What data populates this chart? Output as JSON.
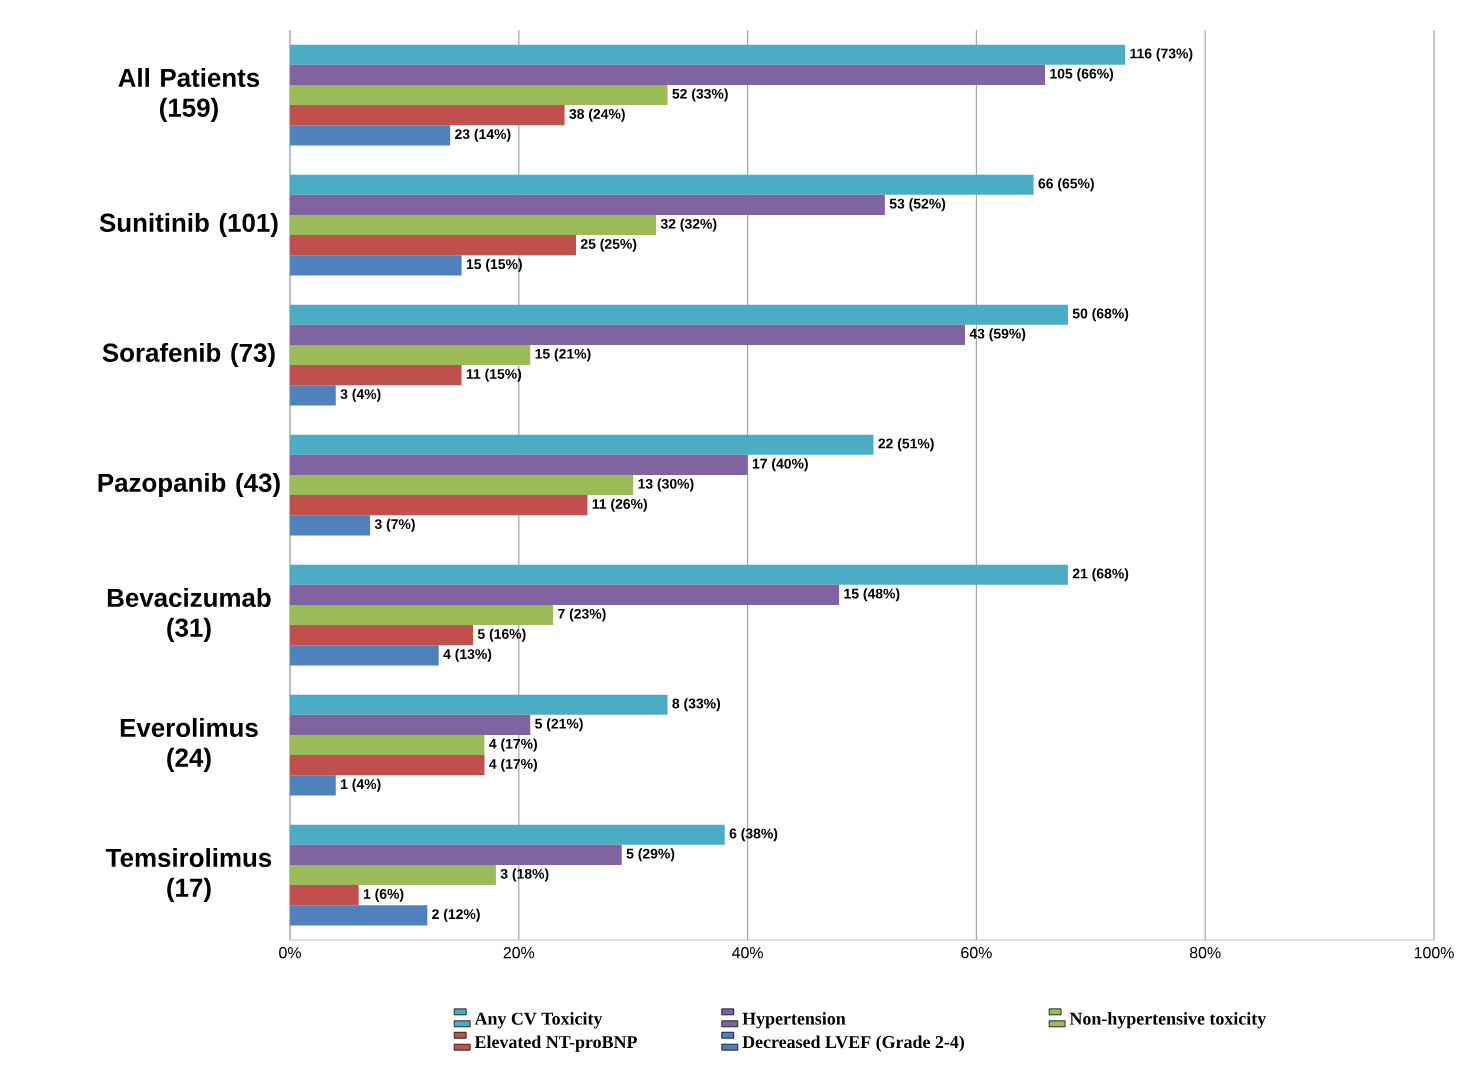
{
  "chart_data": {
    "type": "bar",
    "orientation": "horizontal",
    "categories": [
      "All Patients (159)",
      "Sunitinib (101)",
      "Sorafenib (73)",
      "Pazopanib (43)",
      "Bevacizumab (31)",
      "Everolimus (24)",
      "Temsirolimus (17)"
    ],
    "series": [
      {
        "name": "Any CV Toxicity",
        "color": "#4bacc6",
        "values": [
          73,
          65,
          68,
          51,
          68,
          33,
          38
        ],
        "value_labels": [
          "116 (73%)",
          "66 (65%)",
          "50 (68%)",
          "22 (51%)",
          "21 (68%)",
          "8 (33%)",
          "6 (38%)"
        ]
      },
      {
        "name": "Hypertension",
        "color": "#8064a2",
        "values": [
          66,
          52,
          59,
          40,
          48,
          21,
          29
        ],
        "value_labels": [
          "105 (66%)",
          "53 (52%)",
          "43 (59%)",
          "17 (40%)",
          "15 (48%)",
          "5 (21%)",
          "5 (29%)"
        ]
      },
      {
        "name": "Non-hypertensive toxicity",
        "color": "#9bbb59",
        "values": [
          33,
          32,
          21,
          30,
          23,
          17,
          18
        ],
        "value_labels": [
          "52 (33%)",
          "32 (32%)",
          "15 (21%)",
          "13 (30%)",
          "7 (23%)",
          "4 (17%)",
          "3 (18%)"
        ]
      },
      {
        "name": "Elevated NT-proBNP",
        "color": "#c0504d",
        "values": [
          24,
          25,
          15,
          26,
          16,
          17,
          6
        ],
        "value_labels": [
          "38 (24%)",
          "25 (25%)",
          "11 (15%)",
          "11 (26%)",
          "5 (16%)",
          "4 (17%)",
          "1 (6%)"
        ]
      },
      {
        "name": "Decreased LVEF (Grade 2-4)",
        "color": "#4f81bd",
        "values": [
          14,
          15,
          4,
          7,
          13,
          4,
          12
        ],
        "value_labels": [
          "23 (14%)",
          "15 (15%)",
          "3 (4%)",
          "3 (7%)",
          "4 (13%)",
          "1 (4%)",
          "2 (12%)"
        ]
      }
    ],
    "xlim": [
      0,
      100
    ],
    "xticks": [
      {
        "value": 0,
        "label": "0%"
      },
      {
        "value": 20,
        "label": "20%"
      },
      {
        "value": 40,
        "label": "40%"
      },
      {
        "value": 60,
        "label": "60%"
      },
      {
        "value": 80,
        "label": "80%"
      },
      {
        "value": 100,
        "label": "100%"
      }
    ],
    "grid": "x",
    "legend": "bottom"
  }
}
